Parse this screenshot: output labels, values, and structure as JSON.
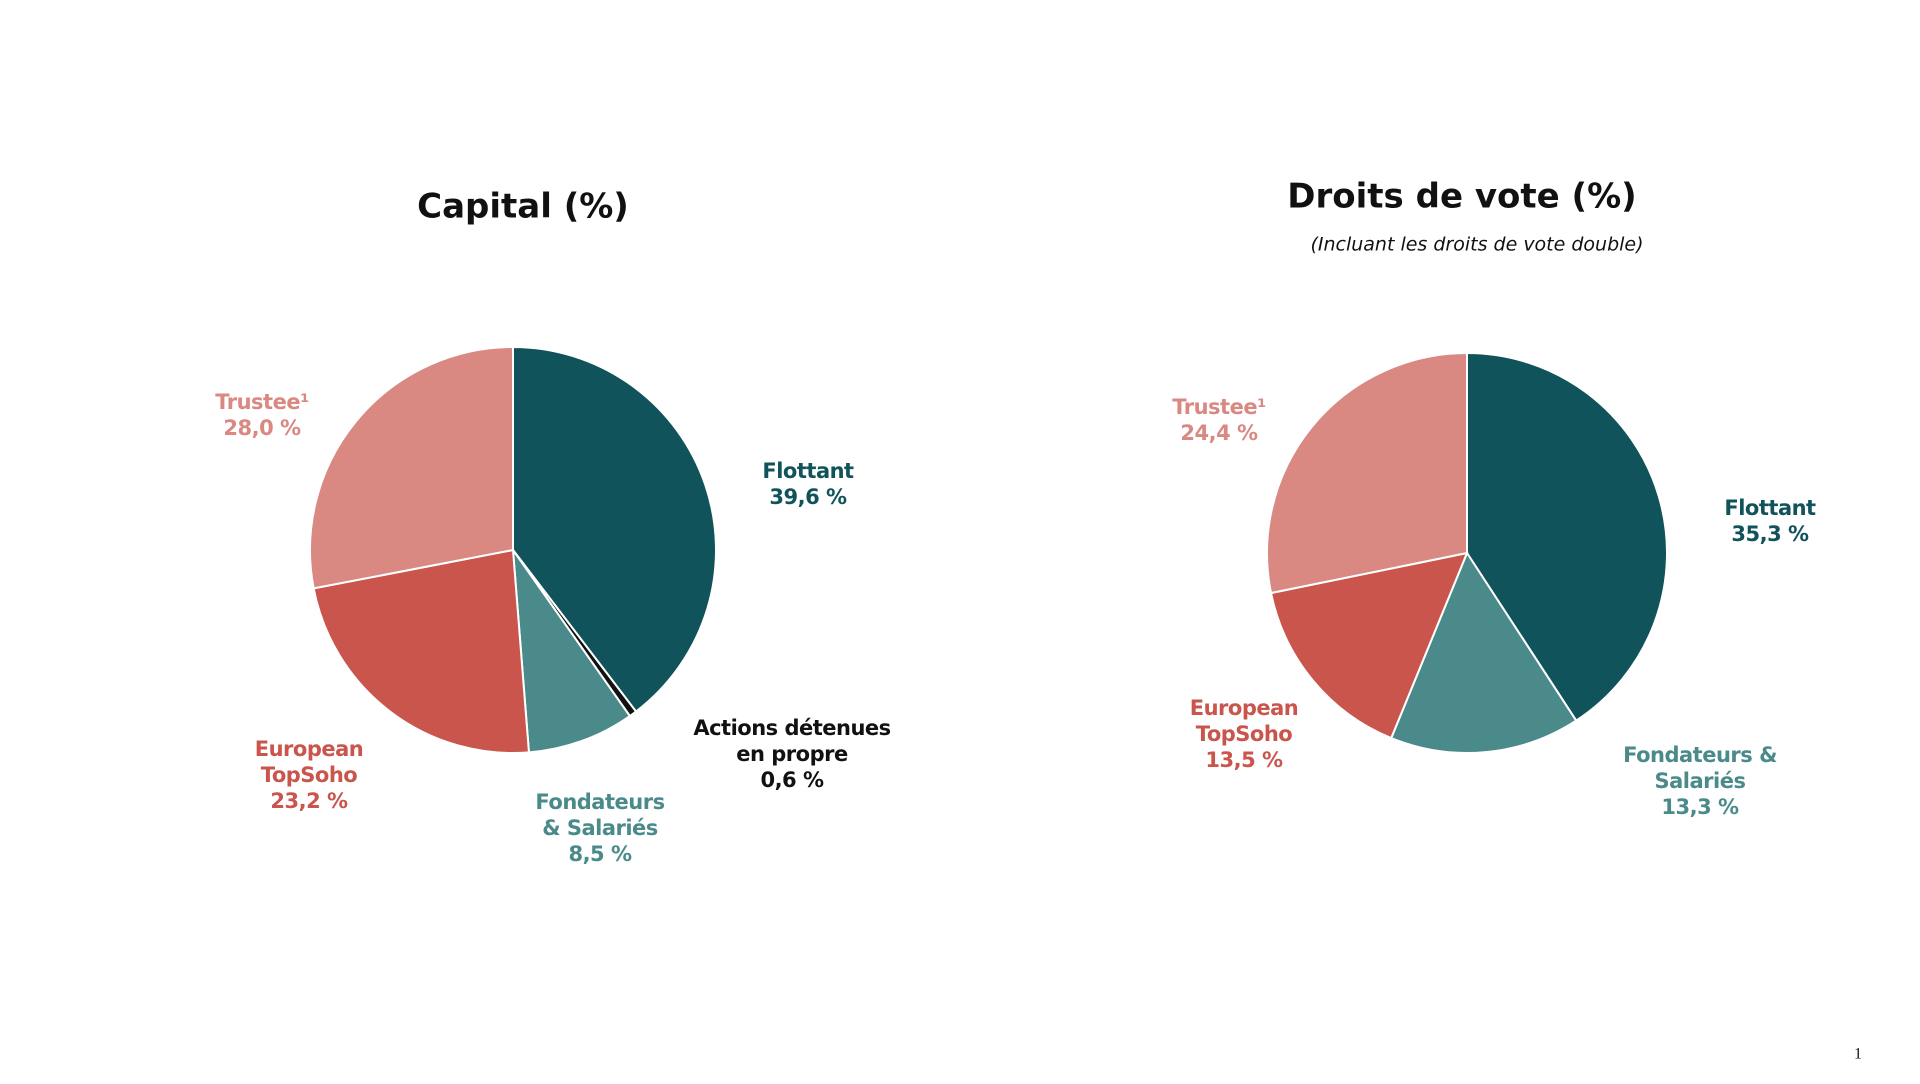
{
  "chart_data": [
    {
      "type": "pie",
      "title": "Capital (%)",
      "categories": [
        "Flottant",
        "Actions détenues\nen propre",
        "Fondateurs\n& Salariés",
        "European\nTopSoho",
        "Trustee¹"
      ],
      "values": [
        39.6,
        0.6,
        8.5,
        23.2,
        28.0
      ],
      "value_labels": [
        "39,6 %",
        "0,6 %",
        "8,5 %",
        "23,2 %",
        "28,0 %"
      ],
      "colors": [
        "#11535a",
        "#111111",
        "#4b8a8a",
        "#c9554c",
        "#d98882"
      ]
    },
    {
      "type": "pie",
      "title": "Droits de vote (%)",
      "subtitle": "(Incluant les droits de vote double)",
      "categories": [
        "Flottant",
        "Fondateurs &\nSalariés",
        "European\nTopSoho",
        "Trustee¹"
      ],
      "values": [
        35.3,
        13.3,
        13.5,
        24.4
      ],
      "value_labels": [
        "35,3 %",
        "13,3 %",
        "13,5 %",
        "24,4 %"
      ],
      "colors": [
        "#11535a",
        "#4b8a8a",
        "#c9554c",
        "#d98882"
      ]
    }
  ],
  "page_number": "1"
}
